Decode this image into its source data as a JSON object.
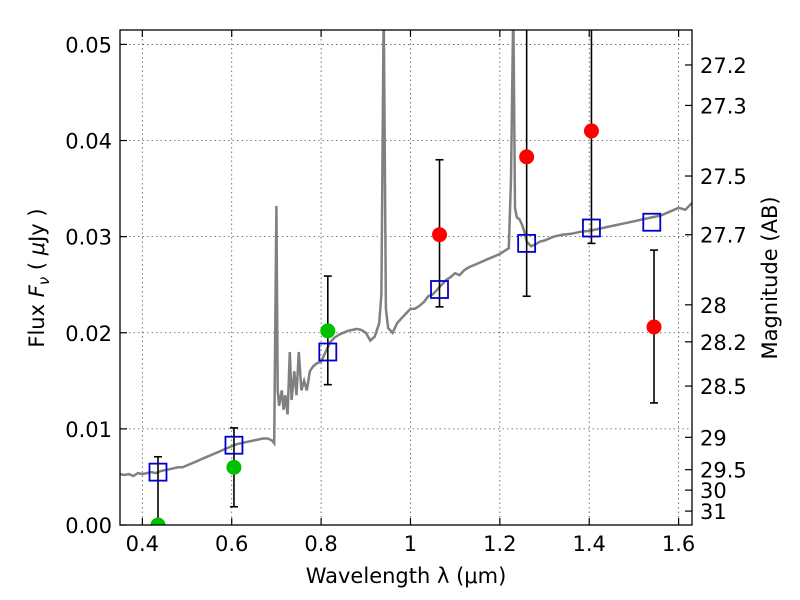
{
  "chart_data": {
    "type": "scatter",
    "xlabel": "Wavelength  λ (μm)",
    "ylabel": "Flux  F_ν  ( μJy )",
    "ylabel_parts": {
      "pre": "Flux  ",
      "symbol": "F",
      "subscript": "ν",
      "post": "  ( ",
      "mu": "μ",
      "unit": "Jy )"
    },
    "y2label": "Magnitude (AB)",
    "xlim": [
      0.35,
      1.63
    ],
    "ylim": [
      0.0,
      0.0515
    ],
    "grid": true,
    "x_ticks": [
      {
        "value": 0.4,
        "label": "0.4"
      },
      {
        "value": 0.6,
        "label": "0.6"
      },
      {
        "value": 0.8,
        "label": "0.8"
      },
      {
        "value": 1.0,
        "label": "1"
      },
      {
        "value": 1.2,
        "label": "1.2"
      },
      {
        "value": 1.4,
        "label": "1.4"
      },
      {
        "value": 1.6,
        "label": "1.6"
      }
    ],
    "y_ticks": [
      {
        "value": 0.0,
        "label": "0.00"
      },
      {
        "value": 0.01,
        "label": "0.01"
      },
      {
        "value": 0.02,
        "label": "0.02"
      },
      {
        "value": 0.03,
        "label": "0.03"
      },
      {
        "value": 0.04,
        "label": "0.04"
      },
      {
        "value": 0.05,
        "label": "0.05"
      }
    ],
    "magnitude_ticks": [
      {
        "mag": 27.2,
        "label": "27.2"
      },
      {
        "mag": 27.3,
        "label": "27.3"
      },
      {
        "mag": 27.5,
        "label": "27.5"
      },
      {
        "mag": 27.7,
        "label": "27.7"
      },
      {
        "mag": 28.0,
        "label": "28"
      },
      {
        "mag": 28.2,
        "label": "28.2"
      },
      {
        "mag": 28.5,
        "label": "28.5"
      },
      {
        "mag": 29.0,
        "label": "29"
      },
      {
        "mag": 29.5,
        "label": "29.5"
      },
      {
        "mag": 30.0,
        "label": "30"
      },
      {
        "mag": 31.0,
        "label": "31"
      }
    ],
    "sed_model": {
      "color": "#808080",
      "points": [
        [
          0.35,
          0.0053
        ],
        [
          0.36,
          0.0052
        ],
        [
          0.37,
          0.0053
        ],
        [
          0.38,
          0.0051
        ],
        [
          0.39,
          0.0054
        ],
        [
          0.4,
          0.0053
        ],
        [
          0.41,
          0.0054
        ],
        [
          0.42,
          0.0055
        ],
        [
          0.43,
          0.0054
        ],
        [
          0.44,
          0.0056
        ],
        [
          0.45,
          0.0057
        ],
        [
          0.46,
          0.0058
        ],
        [
          0.47,
          0.0059
        ],
        [
          0.48,
          0.006
        ],
        [
          0.49,
          0.006
        ],
        [
          0.5,
          0.0062
        ],
        [
          0.51,
          0.0064
        ],
        [
          0.52,
          0.0066
        ],
        [
          0.53,
          0.0068
        ],
        [
          0.54,
          0.007
        ],
        [
          0.55,
          0.0072
        ],
        [
          0.56,
          0.0074
        ],
        [
          0.57,
          0.0076
        ],
        [
          0.58,
          0.0078
        ],
        [
          0.59,
          0.008
        ],
        [
          0.6,
          0.0082
        ],
        [
          0.61,
          0.0084
        ],
        [
          0.62,
          0.0085
        ],
        [
          0.63,
          0.0086
        ],
        [
          0.64,
          0.0087
        ],
        [
          0.65,
          0.0088
        ],
        [
          0.66,
          0.0089
        ],
        [
          0.67,
          0.009
        ],
        [
          0.68,
          0.009
        ],
        [
          0.69,
          0.0088
        ],
        [
          0.695,
          0.0085
        ],
        [
          0.7,
          0.0332
        ],
        [
          0.703,
          0.014
        ],
        [
          0.706,
          0.0124
        ],
        [
          0.712,
          0.014
        ],
        [
          0.716,
          0.012
        ],
        [
          0.72,
          0.0135
        ],
        [
          0.725,
          0.0115
        ],
        [
          0.73,
          0.018
        ],
        [
          0.734,
          0.013
        ],
        [
          0.74,
          0.016
        ],
        [
          0.745,
          0.0135
        ],
        [
          0.75,
          0.018
        ],
        [
          0.756,
          0.014
        ],
        [
          0.762,
          0.015
        ],
        [
          0.768,
          0.014
        ],
        [
          0.775,
          0.016
        ],
        [
          0.782,
          0.0165
        ],
        [
          0.79,
          0.0168
        ],
        [
          0.8,
          0.017
        ],
        [
          0.81,
          0.018
        ],
        [
          0.82,
          0.019
        ],
        [
          0.83,
          0.0195
        ],
        [
          0.84,
          0.0198
        ],
        [
          0.85,
          0.02
        ],
        [
          0.86,
          0.0202
        ],
        [
          0.87,
          0.0203
        ],
        [
          0.88,
          0.0204
        ],
        [
          0.89,
          0.0203
        ],
        [
          0.9,
          0.02
        ],
        [
          0.91,
          0.0192
        ],
        [
          0.92,
          0.0196
        ],
        [
          0.93,
          0.021
        ],
        [
          0.935,
          0.024
        ],
        [
          0.94,
          0.054
        ],
        [
          0.945,
          0.0225
        ],
        [
          0.95,
          0.0205
        ],
        [
          0.96,
          0.02
        ],
        [
          0.97,
          0.021
        ],
        [
          0.98,
          0.0215
        ],
        [
          0.99,
          0.022
        ],
        [
          1.0,
          0.0225
        ],
        [
          1.01,
          0.0225
        ],
        [
          1.02,
          0.0228
        ],
        [
          1.03,
          0.0232
        ],
        [
          1.04,
          0.0238
        ],
        [
          1.05,
          0.024
        ],
        [
          1.06,
          0.0245
        ],
        [
          1.07,
          0.025
        ],
        [
          1.08,
          0.0255
        ],
        [
          1.09,
          0.0258
        ],
        [
          1.1,
          0.0262
        ],
        [
          1.11,
          0.026
        ],
        [
          1.12,
          0.0265
        ],
        [
          1.13,
          0.0268
        ],
        [
          1.14,
          0.027
        ],
        [
          1.15,
          0.0272
        ],
        [
          1.16,
          0.0274
        ],
        [
          1.17,
          0.0276
        ],
        [
          1.18,
          0.0278
        ],
        [
          1.19,
          0.028
        ],
        [
          1.2,
          0.0282
        ],
        [
          1.21,
          0.0285
        ],
        [
          1.22,
          0.0288
        ],
        [
          1.225,
          0.036
        ],
        [
          1.23,
          0.054
        ],
        [
          1.234,
          0.033
        ],
        [
          1.238,
          0.032
        ],
        [
          1.244,
          0.0318
        ],
        [
          1.25,
          0.0312
        ],
        [
          1.255,
          0.0305
        ],
        [
          1.26,
          0.0295
        ],
        [
          1.27,
          0.029
        ],
        [
          1.28,
          0.0292
        ],
        [
          1.29,
          0.0295
        ],
        [
          1.3,
          0.0296
        ],
        [
          1.31,
          0.0298
        ],
        [
          1.32,
          0.03
        ],
        [
          1.34,
          0.0302
        ],
        [
          1.36,
          0.0303
        ],
        [
          1.38,
          0.0305
        ],
        [
          1.4,
          0.0306
        ],
        [
          1.42,
          0.0308
        ],
        [
          1.44,
          0.031
        ],
        [
          1.46,
          0.0312
        ],
        [
          1.48,
          0.0314
        ],
        [
          1.5,
          0.0316
        ],
        [
          1.52,
          0.0318
        ],
        [
          1.54,
          0.032
        ],
        [
          1.56,
          0.0322
        ],
        [
          1.58,
          0.0326
        ],
        [
          1.6,
          0.033
        ],
        [
          1.615,
          0.0328
        ],
        [
          1.63,
          0.0335
        ]
      ]
    },
    "model_photometry": {
      "color": "#0000cc",
      "points": [
        {
          "x": 0.435,
          "y": 0.0055
        },
        {
          "x": 0.605,
          "y": 0.0083
        },
        {
          "x": 0.815,
          "y": 0.018
        },
        {
          "x": 1.065,
          "y": 0.0245
        },
        {
          "x": 1.26,
          "y": 0.0293
        },
        {
          "x": 1.405,
          "y": 0.0309
        },
        {
          "x": 1.54,
          "y": 0.0315
        }
      ]
    },
    "observations": [
      {
        "x": 0.435,
        "y": 0.0,
        "err_low": 0.0,
        "err_high": 0.0071,
        "color": "#00c000"
      },
      {
        "x": 0.605,
        "y": 0.006,
        "err_low": 0.0019,
        "err_high": 0.0101,
        "color": "#00c000"
      },
      {
        "x": 0.815,
        "y": 0.0202,
        "err_low": 0.0146,
        "err_high": 0.0259,
        "color": "#00c000"
      },
      {
        "x": 1.065,
        "y": 0.0302,
        "err_low": 0.0227,
        "err_high": 0.038,
        "color": "#ff0000"
      },
      {
        "x": 1.26,
        "y": 0.0383,
        "err_low": 0.0238,
        "err_high": 0.052,
        "color": "#ff0000"
      },
      {
        "x": 1.405,
        "y": 0.041,
        "err_low": 0.0293,
        "err_high": 0.052,
        "color": "#ff0000"
      },
      {
        "x": 1.545,
        "y": 0.0206,
        "err_low": 0.0127,
        "err_high": 0.0286,
        "color": "#ff0000"
      }
    ]
  }
}
